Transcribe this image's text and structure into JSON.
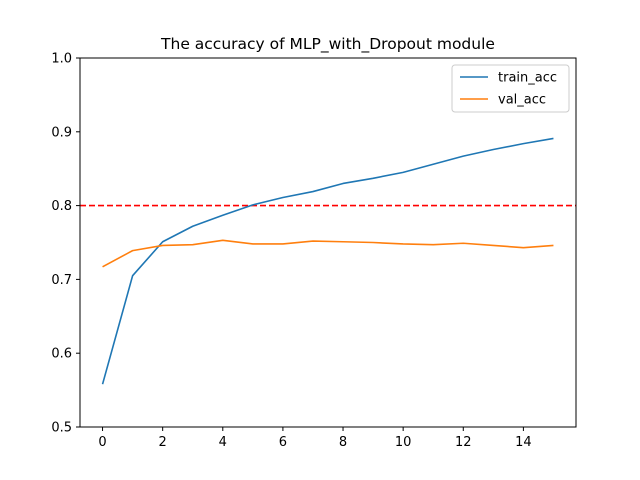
{
  "chart_data": {
    "type": "line",
    "title": "The accuracy of MLP_with_Dropout module",
    "xlabel": "",
    "ylabel": "",
    "x": [
      0,
      1,
      2,
      3,
      4,
      5,
      6,
      7,
      8,
      9,
      10,
      11,
      12,
      13,
      14,
      15
    ],
    "xlim": [
      -0.75,
      15.75
    ],
    "ylim": [
      0.5,
      1.0
    ],
    "xticks": [
      0,
      2,
      4,
      6,
      8,
      10,
      12,
      14
    ],
    "yticks": [
      0.5,
      0.6,
      0.7,
      0.8,
      0.9,
      1.0
    ],
    "xtick_labels": [
      "0",
      "2",
      "4",
      "6",
      "8",
      "10",
      "12",
      "14"
    ],
    "ytick_labels": [
      "0.5",
      "0.6",
      "0.7",
      "0.8",
      "0.9",
      "1.0"
    ],
    "grid": false,
    "legend_position": "top-right",
    "series": [
      {
        "name": "train_acc",
        "color": "#1f77b4",
        "values": [
          0.558,
          0.705,
          0.751,
          0.772,
          0.787,
          0.801,
          0.811,
          0.819,
          0.83,
          0.837,
          0.845,
          0.856,
          0.867,
          0.876,
          0.884,
          0.891
        ]
      },
      {
        "name": "val_acc",
        "color": "#ff7f0e",
        "values": [
          0.717,
          0.739,
          0.746,
          0.747,
          0.753,
          0.748,
          0.748,
          0.752,
          0.751,
          0.75,
          0.748,
          0.747,
          0.749,
          0.746,
          0.743,
          0.746
        ]
      }
    ],
    "reference_line": {
      "y": 0.8,
      "color": "#ff0000",
      "style": "dashed"
    }
  }
}
